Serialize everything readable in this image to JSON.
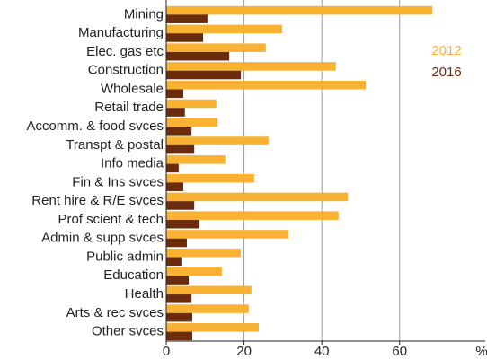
{
  "chart_data": {
    "type": "hbar",
    "xlabel": "%",
    "categories": [
      "Mining",
      "Manufacturing",
      "Elec. gas etc",
      "Construction",
      "Wholesale",
      "Retail trade",
      "Accomm. & food svces",
      "Transpt & postal",
      "Info media",
      "Fin & Ins svces",
      "Rent hire & R/E svces",
      "Prof scient & tech",
      "Admin & supp svces",
      "Public admin",
      "Education",
      "Health",
      "Arts & rec svces",
      "Other svces"
    ],
    "series": [
      {
        "name": "2012",
        "color": "#f9b233",
        "values": [
          68.4,
          29.8,
          25.6,
          43.6,
          51.3,
          12.9,
          13.2,
          26.3,
          15.2,
          22.6,
          46.7,
          44.3,
          31.4,
          19.2,
          14.3,
          21.9,
          21.2,
          23.8
        ]
      },
      {
        "name": "2016",
        "color": "#6b2c0e",
        "values": [
          10.6,
          9.5,
          16.2,
          19.2,
          4.4,
          4.8,
          6.5,
          7.2,
          3.2,
          4.4,
          7.2,
          8.5,
          5.3,
          3.9,
          5.8,
          6.5,
          6.7,
          6.7
        ]
      }
    ],
    "xlim": [
      0,
      82
    ],
    "xticks": [
      0,
      20,
      40,
      60
    ],
    "grid": true,
    "legend": "upper right"
  }
}
